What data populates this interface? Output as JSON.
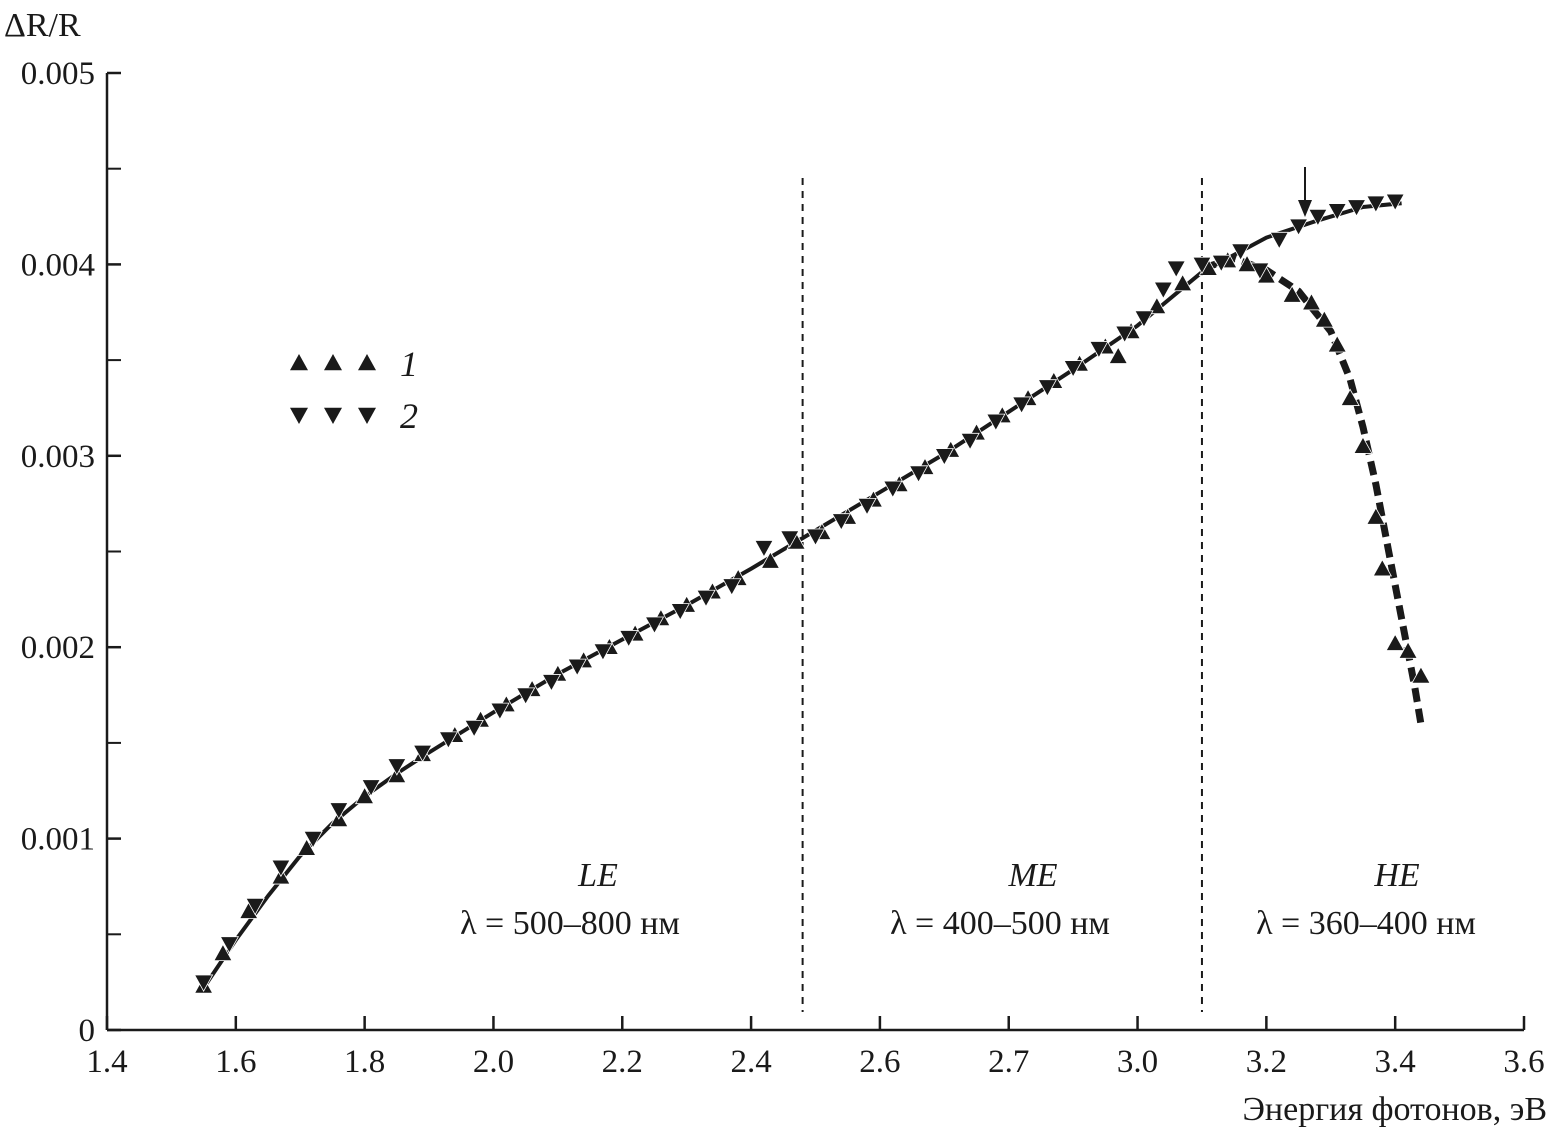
{
  "chart_data": {
    "type": "scatter",
    "ylabel": "ΔR/R",
    "xlabel": "Энергия фотонов, эВ",
    "x_tick_labels": [
      "1.4",
      "1.6",
      "1.8",
      "2.0",
      "2.2",
      "2.4",
      "2.6",
      "2.7",
      "3.0",
      "3.2",
      "3.4",
      "3.6"
    ],
    "y_tick_labels": [
      "0",
      "0.001",
      "0.002",
      "0.003",
      "0.004",
      "0.005"
    ],
    "y_ticks": [
      0,
      0.001,
      0.002,
      0.003,
      0.004,
      0.005
    ],
    "xlim": [
      1.4,
      3.6
    ],
    "ylim": [
      0,
      0.005
    ],
    "grid": false,
    "legend_position": "upper-left",
    "dividers_x": [
      2.48,
      3.1
    ],
    "arrow_x": 3.26,
    "regions": [
      {
        "name": "LE",
        "range": "λ = 500–800 нм"
      },
      {
        "name": "ME",
        "range": "λ = 400–500 нм"
      },
      {
        "name": "HE",
        "range": "λ = 360–400 нм"
      }
    ],
    "series": [
      {
        "name": "1",
        "marker": "triangle-up",
        "points": [
          [
            1.55,
            0.00023
          ],
          [
            1.58,
            0.0004
          ],
          [
            1.62,
            0.00062
          ],
          [
            1.67,
            0.0008
          ],
          [
            1.71,
            0.00095
          ],
          [
            1.76,
            0.0011
          ],
          [
            1.8,
            0.00122
          ],
          [
            1.85,
            0.00133
          ],
          [
            1.89,
            0.00144
          ],
          [
            1.94,
            0.00154
          ],
          [
            1.98,
            0.00162
          ],
          [
            2.02,
            0.0017
          ],
          [
            2.06,
            0.00178
          ],
          [
            2.1,
            0.00186
          ],
          [
            2.14,
            0.00193
          ],
          [
            2.18,
            0.002
          ],
          [
            2.22,
            0.00207
          ],
          [
            2.26,
            0.00215
          ],
          [
            2.3,
            0.00222
          ],
          [
            2.34,
            0.00229
          ],
          [
            2.38,
            0.00236
          ],
          [
            2.43,
            0.00245
          ],
          [
            2.47,
            0.00255
          ],
          [
            2.51,
            0.0026
          ],
          [
            2.55,
            0.00268
          ],
          [
            2.59,
            0.00277
          ],
          [
            2.63,
            0.00285
          ],
          [
            2.67,
            0.00294
          ],
          [
            2.71,
            0.00303
          ],
          [
            2.75,
            0.00312
          ],
          [
            2.79,
            0.00321
          ],
          [
            2.83,
            0.0033
          ],
          [
            2.87,
            0.00339
          ],
          [
            2.91,
            0.00348
          ],
          [
            2.95,
            0.00357
          ],
          [
            2.97,
            0.00352
          ],
          [
            2.99,
            0.00365
          ],
          [
            3.03,
            0.00378
          ],
          [
            3.07,
            0.0039
          ],
          [
            3.11,
            0.00398
          ],
          [
            3.14,
            0.00402
          ],
          [
            3.17,
            0.004
          ],
          [
            3.2,
            0.00394
          ],
          [
            3.24,
            0.00384
          ],
          [
            3.27,
            0.0038
          ],
          [
            3.29,
            0.00371
          ],
          [
            3.31,
            0.00358
          ],
          [
            3.33,
            0.0033
          ],
          [
            3.35,
            0.00305
          ],
          [
            3.37,
            0.00268
          ],
          [
            3.38,
            0.00241
          ],
          [
            3.4,
            0.00202
          ],
          [
            3.42,
            0.00198
          ],
          [
            3.44,
            0.00185
          ]
        ]
      },
      {
        "name": "2",
        "marker": "triangle-down",
        "points": [
          [
            1.55,
            0.00025
          ],
          [
            1.59,
            0.00045
          ],
          [
            1.63,
            0.00065
          ],
          [
            1.67,
            0.00085
          ],
          [
            1.72,
            0.001
          ],
          [
            1.76,
            0.00115
          ],
          [
            1.81,
            0.00127
          ],
          [
            1.85,
            0.00138
          ],
          [
            1.89,
            0.00145
          ],
          [
            1.93,
            0.00152
          ],
          [
            1.97,
            0.00158
          ],
          [
            2.01,
            0.00167
          ],
          [
            2.05,
            0.00175
          ],
          [
            2.09,
            0.00182
          ],
          [
            2.13,
            0.0019
          ],
          [
            2.17,
            0.00198
          ],
          [
            2.21,
            0.00205
          ],
          [
            2.25,
            0.00212
          ],
          [
            2.29,
            0.00219
          ],
          [
            2.33,
            0.00226
          ],
          [
            2.37,
            0.00232
          ],
          [
            2.42,
            0.00252
          ],
          [
            2.46,
            0.00257
          ],
          [
            2.5,
            0.00258
          ],
          [
            2.54,
            0.00266
          ],
          [
            2.58,
            0.00274
          ],
          [
            2.62,
            0.00283
          ],
          [
            2.66,
            0.00291
          ],
          [
            2.7,
            0.003
          ],
          [
            2.74,
            0.00308
          ],
          [
            2.78,
            0.00318
          ],
          [
            2.82,
            0.00327
          ],
          [
            2.86,
            0.00336
          ],
          [
            2.9,
            0.00346
          ],
          [
            2.94,
            0.00356
          ],
          [
            2.98,
            0.00364
          ],
          [
            3.01,
            0.00372
          ],
          [
            3.04,
            0.00387
          ],
          [
            3.06,
            0.00398
          ],
          [
            3.1,
            0.004
          ],
          [
            3.13,
            0.00401
          ],
          [
            3.16,
            0.00407
          ],
          [
            3.19,
            0.00397
          ],
          [
            3.22,
            0.00413
          ],
          [
            3.25,
            0.0042
          ],
          [
            3.28,
            0.00425
          ],
          [
            3.31,
            0.00428
          ],
          [
            3.34,
            0.0043
          ],
          [
            3.37,
            0.00432
          ],
          [
            3.4,
            0.00433
          ]
        ]
      }
    ],
    "fit_curves": [
      {
        "style": "solid",
        "points": [
          [
            1.55,
            0.00022
          ],
          [
            1.6,
            0.00047
          ],
          [
            1.65,
            0.0007
          ],
          [
            1.7,
            0.00091
          ],
          [
            1.75,
            0.00108
          ],
          [
            1.8,
            0.00122
          ],
          [
            1.85,
            0.00134
          ],
          [
            1.9,
            0.00145
          ],
          [
            2.0,
            0.00166
          ],
          [
            2.1,
            0.00186
          ],
          [
            2.2,
            0.00204
          ],
          [
            2.3,
            0.00222
          ],
          [
            2.4,
            0.00241
          ],
          [
            2.48,
            0.00257
          ],
          [
            2.6,
            0.00281
          ],
          [
            2.7,
            0.00301
          ],
          [
            2.8,
            0.00323
          ],
          [
            2.9,
            0.00345
          ],
          [
            3.0,
            0.00368
          ],
          [
            3.1,
            0.00396
          ],
          [
            3.2,
            0.00414
          ],
          [
            3.28,
            0.00423
          ],
          [
            3.35,
            0.0043
          ],
          [
            3.41,
            0.00432
          ]
        ]
      },
      {
        "style": "dashed",
        "points": [
          [
            3.1,
            0.00398
          ],
          [
            3.15,
            0.00403
          ],
          [
            3.2,
            0.00397
          ],
          [
            3.25,
            0.00386
          ],
          [
            3.3,
            0.00365
          ],
          [
            3.33,
            0.0034
          ],
          [
            3.35,
            0.00315
          ],
          [
            3.37,
            0.00285
          ],
          [
            3.39,
            0.0025
          ],
          [
            3.41,
            0.00215
          ],
          [
            3.43,
            0.0018
          ],
          [
            3.44,
            0.0016
          ]
        ]
      }
    ]
  }
}
